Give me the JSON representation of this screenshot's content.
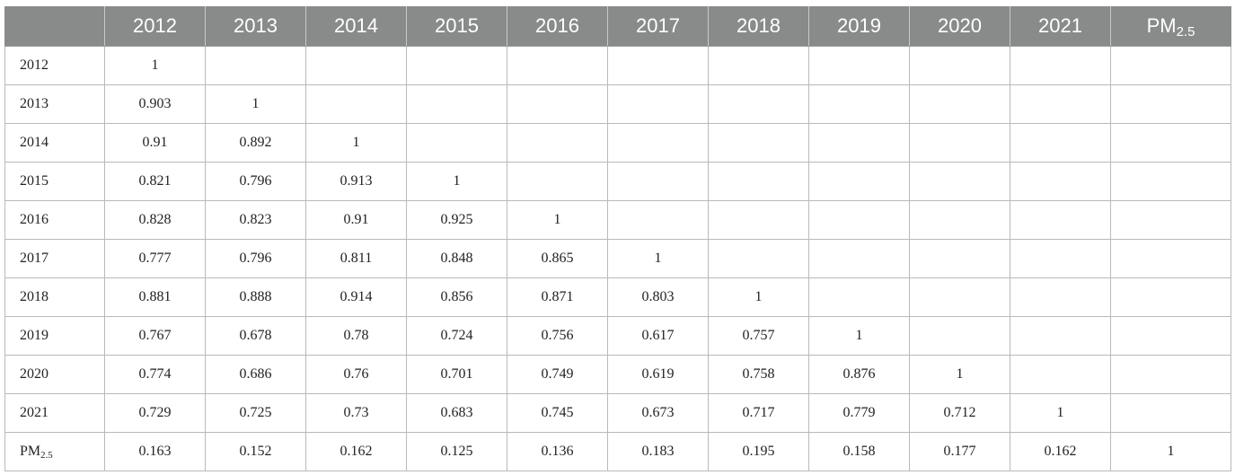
{
  "table": {
    "corner": "",
    "columns": [
      "2012",
      "2013",
      "2014",
      "2015",
      "2016",
      "2017",
      "2018",
      "2019",
      "2020",
      "2021",
      "PM2.5"
    ],
    "rows": [
      {
        "label": "2012",
        "cells": [
          "1",
          "",
          "",
          "",
          "",
          "",
          "",
          "",
          "",
          "",
          ""
        ]
      },
      {
        "label": "2013",
        "cells": [
          "0.903",
          "1",
          "",
          "",
          "",
          "",
          "",
          "",
          "",
          "",
          ""
        ]
      },
      {
        "label": "2014",
        "cells": [
          "0.91",
          "0.892",
          "1",
          "",
          "",
          "",
          "",
          "",
          "",
          "",
          ""
        ]
      },
      {
        "label": "2015",
        "cells": [
          "0.821",
          "0.796",
          "0.913",
          "1",
          "",
          "",
          "",
          "",
          "",
          "",
          ""
        ]
      },
      {
        "label": "2016",
        "cells": [
          "0.828",
          "0.823",
          "0.91",
          "0.925",
          "1",
          "",
          "",
          "",
          "",
          "",
          ""
        ]
      },
      {
        "label": "2017",
        "cells": [
          "0.777",
          "0.796",
          "0.811",
          "0.848",
          "0.865",
          "1",
          "",
          "",
          "",
          "",
          ""
        ]
      },
      {
        "label": "2018",
        "cells": [
          "0.881",
          "0.888",
          "0.914",
          "0.856",
          "0.871",
          "0.803",
          "1",
          "",
          "",
          "",
          ""
        ]
      },
      {
        "label": "2019",
        "cells": [
          "0.767",
          "0.678",
          "0.78",
          "0.724",
          "0.756",
          "0.617",
          "0.757",
          "1",
          "",
          "",
          ""
        ]
      },
      {
        "label": "2020",
        "cells": [
          "0.774",
          "0.686",
          "0.76",
          "0.701",
          "0.749",
          "0.619",
          "0.758",
          "0.876",
          "1",
          "",
          ""
        ]
      },
      {
        "label": "2021",
        "cells": [
          "0.729",
          "0.725",
          "0.73",
          "0.683",
          "0.745",
          "0.673",
          "0.717",
          "0.779",
          "0.712",
          "1",
          ""
        ]
      },
      {
        "label": "PM2.5",
        "cells": [
          "0.163",
          "0.152",
          "0.162",
          "0.125",
          "0.136",
          "0.183",
          "0.195",
          "0.158",
          "0.177",
          "0.162",
          "1"
        ]
      }
    ]
  },
  "colors": {
    "header_background": "#898b8a",
    "header_text": "#ffffff",
    "grid_line": "#b9b9b9",
    "body_text": "#222222"
  }
}
